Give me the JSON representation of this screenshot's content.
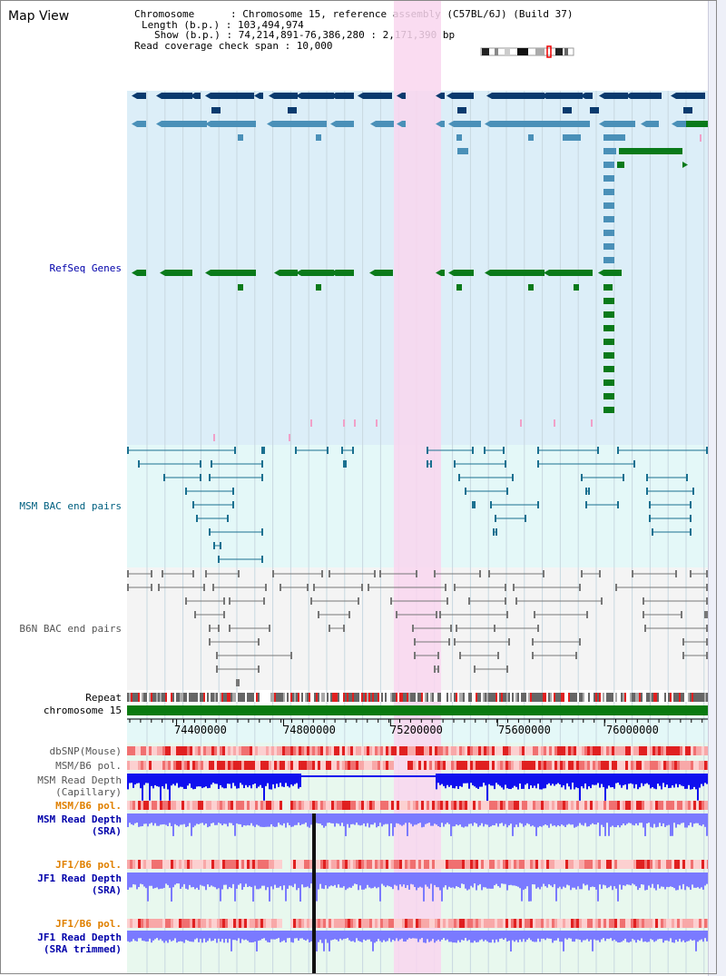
{
  "page": {
    "title": "Map View"
  },
  "info": {
    "line1": "Chromosome      : Chromosome 15, reference assembly (C57BL/6J) (Build 37)",
    "line2": "Length (b.p.) : 103,494,974",
    "line3": "Show (b.p.) : 74,214,891-76,386,280 : 2,171,390 bp",
    "line4": "Read coverage check span : 10,000"
  },
  "tracks": {
    "refseq": "RefSeq Genes",
    "msm_bac": "MSM BAC end pairs",
    "b6n_bac": "B6N BAC end pairs",
    "repeat": "Repeat",
    "chromosome": "chromosome 15",
    "dbsnp": "dbSNP(Mouse)",
    "msm_b6_pol_1": "MSM/B6 pol.",
    "msm_read_depth_cap": "MSM Read Depth\n(Capillary)",
    "msm_b6_pol_2": "MSM/B6 pol.",
    "msm_read_depth_sra": "MSM Read Depth\n(SRA)",
    "jf1_b6_pol_1": "JF1/B6 pol.",
    "jf1_read_depth_sra": "JF1 Read Depth\n(SRA)",
    "jf1_b6_pol_2": "JF1/B6 pol.",
    "jf1_read_depth_trim": "JF1 Read Depth\n(SRA trimmed)"
  },
  "axis": {
    "ticks": [
      "74400000",
      "74800000",
      "75200000",
      "75600000",
      "76000000"
    ],
    "tick_values": [
      74400000,
      74800000,
      75200000,
      75600000,
      76000000
    ],
    "start": 74214891,
    "end": 76386280
  },
  "colors": {
    "refseq_bg": "#dceef8",
    "bac_bg": "#e4f8f8",
    "highlight": "#f9d6ee",
    "gene_dark": "#0a3a6e",
    "gene_mid": "#4a90b8",
    "gene_green": "#0a7a1a",
    "bac_line": "#1a7090",
    "b6n_line": "#777777",
    "chrom": "#0a7a10",
    "depth_blue": "#1010ee",
    "depth_light": "#7a7aff"
  }
}
